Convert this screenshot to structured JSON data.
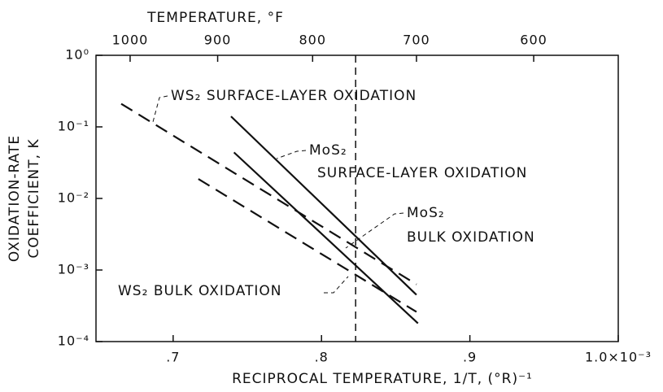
{
  "chart_data": {
    "type": "line",
    "title": "TEMPERATURE, °F",
    "x_label": "RECIPROCAL TEMPERATURE, 1/T, (°R)⁻¹",
    "y_label": [
      "OXIDATION-RATE",
      "COEFFICIENT, K"
    ],
    "log_y": true,
    "xlim": [
      0.648,
      1.0
    ],
    "ylim": [
      0.0001,
      1
    ],
    "xticks": [
      {
        "value": 0.7,
        "label": ".7"
      },
      {
        "value": 0.8,
        "label": ".8"
      },
      {
        "value": 0.9,
        "label": ".9"
      },
      {
        "value": 1.0,
        "label": "1.0×10⁻³"
      }
    ],
    "yticks": [
      {
        "value": 1,
        "label": "10⁰"
      },
      {
        "value": 0.1,
        "label": "10⁻¹"
      },
      {
        "value": 0.01,
        "label": "10⁻²"
      },
      {
        "value": 0.001,
        "label": "10⁻³"
      },
      {
        "value": 0.0001,
        "label": "10⁻⁴"
      }
    ],
    "x2ticks": [
      {
        "value": 0.671,
        "label": "1000"
      },
      {
        "value": 0.73,
        "label": "900"
      },
      {
        "value": 0.794,
        "label": "800"
      },
      {
        "value": 0.864,
        "label": "700"
      },
      {
        "value": 0.943,
        "label": "600"
      }
    ],
    "reference_x": 0.823,
    "series": [
      {
        "color": "#111",
        "dash": true,
        "x": [
          0.665,
          0.864
        ],
        "values": [
          0.21,
          0.00063
        ]
      },
      {
        "color": "#111",
        "dash": true,
        "x": [
          0.717,
          0.864
        ],
        "values": [
          0.0187,
          0.00026
        ]
      },
      {
        "color": "#111",
        "dash": false,
        "x": [
          0.739,
          0.864
        ],
        "values": [
          0.14,
          0.00045
        ]
      },
      {
        "color": "#111",
        "dash": false,
        "x": [
          0.741,
          0.865
        ],
        "values": [
          0.044,
          0.00018
        ]
      }
    ],
    "annotations": [
      "WS₂ SURFACE-LAYER OXIDATION",
      "MoS₂",
      "SURFACE-LAYER OXIDATION",
      "MoS₂",
      "BULK OXIDATION",
      "WS₂ BULK OXIDATION"
    ]
  }
}
